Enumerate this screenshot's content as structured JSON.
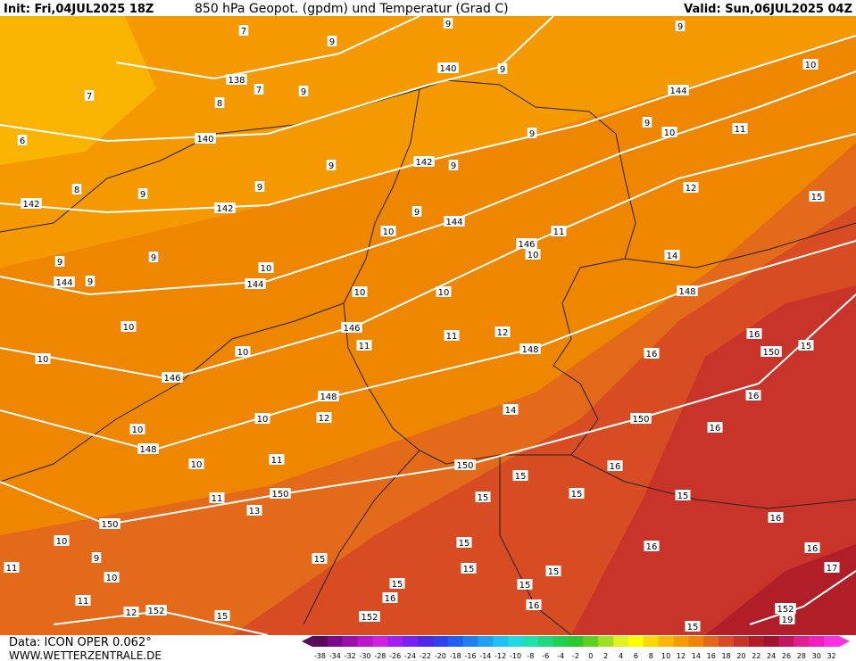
{
  "header": {
    "init": "Init: Fri,04JUL2025 18Z",
    "title": "850 hPa Geopot. (gpdm) und Temperatur (Grad C)",
    "valid": "Valid: Sun,06JUL2025 04Z"
  },
  "footer": {
    "data": "Data: ICON OPER 0.062°",
    "site": "WWW.WETTERZENTRALE.DE"
  },
  "map": {
    "labels": [
      138,
      140,
      140,
      142,
      142,
      142,
      144,
      144,
      144,
      144,
      146,
      146,
      146,
      148,
      148,
      148,
      148,
      150,
      150,
      150,
      150,
      150,
      152,
      152,
      152,
      7,
      9,
      7,
      9,
      10,
      10,
      11,
      12,
      15,
      14,
      16,
      15,
      16,
      16,
      16,
      16,
      15,
      15,
      15,
      15,
      14,
      12,
      11,
      11,
      12,
      10,
      10,
      10,
      10,
      10,
      10,
      10,
      10,
      10,
      11,
      11,
      10,
      10,
      11,
      12,
      15,
      15,
      15,
      15,
      15,
      15,
      15,
      16,
      16,
      16,
      16,
      16,
      17,
      15,
      13,
      9,
      9,
      9,
      9,
      9,
      9,
      9,
      9,
      9,
      9,
      9,
      9,
      9,
      8,
      6,
      7,
      8,
      11,
      10,
      10,
      11,
      9,
      19
    ]
  },
  "legend": {
    "ticks": [
      -38,
      -34,
      -32,
      -30,
      -28,
      -26,
      -24,
      -22,
      -20,
      -18,
      -16,
      -14,
      -12,
      -10,
      -8,
      -6,
      -4,
      -2,
      0,
      2,
      4,
      6,
      8,
      10,
      12,
      14,
      16,
      18,
      20,
      22,
      24,
      26,
      28,
      30,
      32
    ],
    "colors": [
      "#5a0a5a",
      "#7a0a8a",
      "#9a10aa",
      "#b818c8",
      "#d020e0",
      "#a020f0",
      "#7a20f0",
      "#5028e8",
      "#3040f0",
      "#2060f0",
      "#2080f0",
      "#20a0f0",
      "#20c0f0",
      "#20d8e0",
      "#20e0b0",
      "#20d880",
      "#20d050",
      "#30c830",
      "#60d020",
      "#a0e020",
      "#e0f020",
      "#ffff00",
      "#ffd800",
      "#ffb800",
      "#f59b00",
      "#ee8400",
      "#e3661c",
      "#d84a26",
      "#c8322a",
      "#b01e28",
      "#a01430",
      "#c01860",
      "#e02090",
      "#f020c0",
      "#ff30e0"
    ]
  }
}
